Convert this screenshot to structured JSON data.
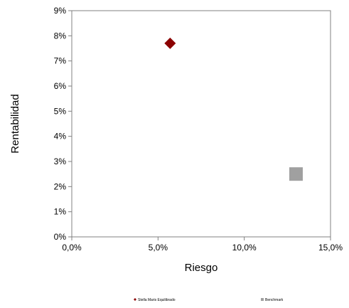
{
  "chart_data": {
    "type": "scatter",
    "title": "",
    "xlabel": "Riesgo",
    "ylabel": "Rentabilidad",
    "xlim": [
      0.0,
      15.0
    ],
    "ylim": [
      0,
      9
    ],
    "x_ticks": [
      {
        "value": 0,
        "label": "0,0%"
      },
      {
        "value": 5,
        "label": "5,0%"
      },
      {
        "value": 10,
        "label": "10,0%"
      },
      {
        "value": 15,
        "label": "15,0%"
      }
    ],
    "y_ticks": [
      {
        "value": 0,
        "label": "0%"
      },
      {
        "value": 1,
        "label": "1%"
      },
      {
        "value": 2,
        "label": "2%"
      },
      {
        "value": 3,
        "label": "3%"
      },
      {
        "value": 4,
        "label": "4%"
      },
      {
        "value": 5,
        "label": "5%"
      },
      {
        "value": 6,
        "label": "6%"
      },
      {
        "value": 7,
        "label": "7%"
      },
      {
        "value": 8,
        "label": "8%"
      },
      {
        "value": 9,
        "label": "9%"
      }
    ],
    "grid": false,
    "legend_position": "bottom",
    "series": [
      {
        "name": "Stella Maris Equilibrado",
        "marker": "diamond",
        "color": "#8B0000",
        "points": [
          {
            "x": 5.7,
            "y": 7.7
          }
        ]
      },
      {
        "name": "Benchmark",
        "marker": "square",
        "color": "#A0A0A0",
        "points": [
          {
            "x": 13.0,
            "y": 2.5
          }
        ]
      }
    ]
  }
}
